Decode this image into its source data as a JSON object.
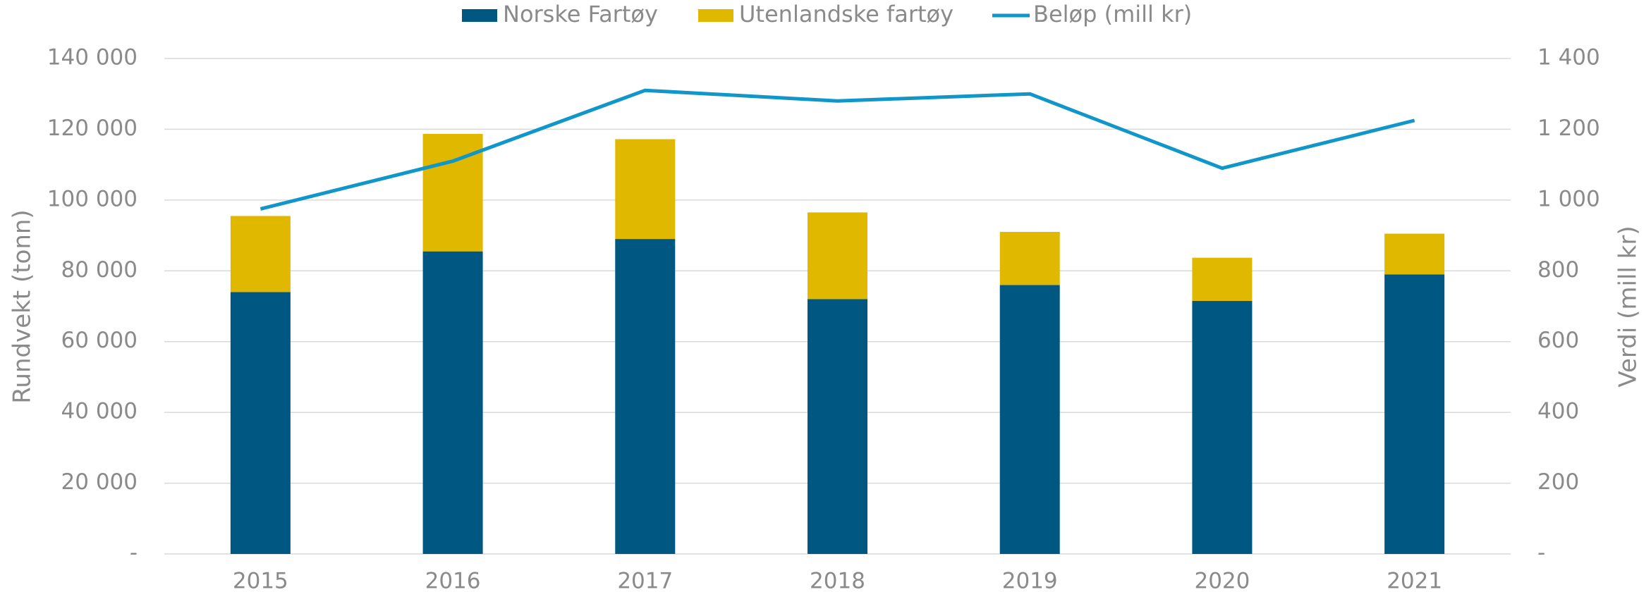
{
  "chart_data": {
    "type": "bar",
    "categories": [
      "2015",
      "2016",
      "2017",
      "2018",
      "2019",
      "2020",
      "2021"
    ],
    "series": [
      {
        "name": "Norske Fartøy",
        "color": "#005782",
        "values": [
          74000,
          85500,
          89000,
          72000,
          76000,
          71500,
          79000
        ]
      },
      {
        "name": "Utenlandske fartøy",
        "color": "#e1b800",
        "values": [
          21500,
          33200,
          28200,
          24500,
          15000,
          12200,
          11500
        ]
      },
      {
        "name": "Beløp (mill kr)",
        "color": "#1196c9",
        "type": "line",
        "axis": "y2",
        "values": [
          975,
          1110,
          1310,
          1280,
          1300,
          1090,
          1225
        ]
      }
    ],
    "stacked": true,
    "ylabel": "Rundvekt (tonn)",
    "y2label": "Verdi (mill kr)",
    "ylim": [
      0,
      140000
    ],
    "yticks": [
      {
        "value": 0,
        "label": "-"
      },
      {
        "value": 20000,
        "label": "20 000"
      },
      {
        "value": 40000,
        "label": "40 000"
      },
      {
        "value": 60000,
        "label": "60 000"
      },
      {
        "value": 80000,
        "label": "80 000"
      },
      {
        "value": 100000,
        "label": "100 000"
      },
      {
        "value": 120000,
        "label": "120 000"
      },
      {
        "value": 140000,
        "label": "140 000"
      }
    ],
    "y2lim": [
      0,
      1400
    ],
    "y2ticks": [
      {
        "value": 0,
        "label": "-"
      },
      200,
      400,
      600,
      800,
      {
        "value": 1000,
        "label": "1 000"
      },
      {
        "value": 1200,
        "label": "1 200"
      },
      {
        "value": 1400,
        "label": "1 400"
      }
    ],
    "grid": true,
    "legend": "top"
  }
}
